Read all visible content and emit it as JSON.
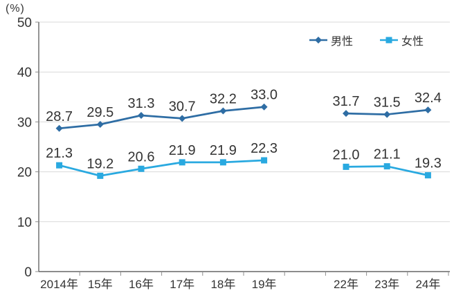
{
  "chart_data": {
    "type": "line",
    "title": "",
    "ylabel": "(%)",
    "xlabel": "",
    "categories": [
      "2014年",
      "15年",
      "16年",
      "17年",
      "18年",
      "19年",
      "",
      "22年",
      "23年",
      "24年"
    ],
    "series": [
      {
        "name": "男性",
        "marker": "diamond",
        "color": "#2e6da4",
        "values": [
          28.7,
          29.5,
          31.3,
          30.7,
          32.2,
          33.0,
          null,
          31.7,
          31.5,
          32.4
        ]
      },
      {
        "name": "女性",
        "marker": "square",
        "color": "#29a9e0",
        "values": [
          21.3,
          19.2,
          20.6,
          21.9,
          21.9,
          22.3,
          null,
          21.0,
          21.1,
          19.3
        ]
      }
    ],
    "ylim": [
      0,
      50
    ],
    "yticks": [
      0,
      10,
      20,
      30,
      40,
      50
    ],
    "grid": true,
    "data_labels": true,
    "legend_position": "top-right"
  },
  "colors": {
    "male_series": "#2e6da4",
    "female_series": "#29a9e0",
    "gridline": "#d9d9d9",
    "axis_line": "#666666",
    "tick_mark": "#8c8c8c",
    "text": "#333333",
    "background": "#ffffff"
  }
}
